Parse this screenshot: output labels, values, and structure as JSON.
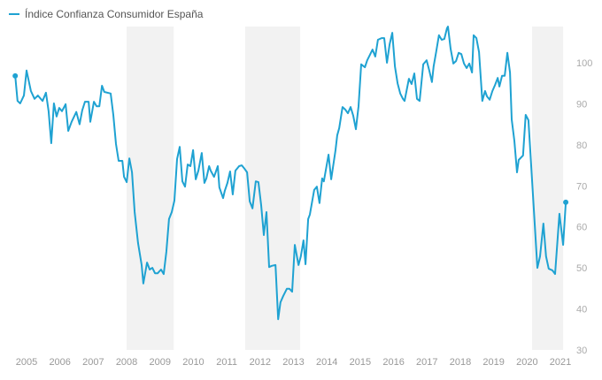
{
  "chart_data": {
    "type": "line",
    "title": "",
    "xlabel": "",
    "ylabel": "",
    "legend": {
      "placement": "top-left",
      "entries": [
        "Índice Confianza Consumidor España"
      ]
    },
    "ylim": [
      30,
      109
    ],
    "yticks": [
      30,
      40,
      50,
      60,
      70,
      80,
      90,
      100
    ],
    "xticks": [
      "2005",
      "2006",
      "2007",
      "2008",
      "2009",
      "2010",
      "2011",
      "2012",
      "2013",
      "2014",
      "2015",
      "2016",
      "2017",
      "2018",
      "2019",
      "2020",
      "2021"
    ],
    "grid": false,
    "shaded_periods": [
      [
        2008.0,
        2009.41
      ],
      [
        2011.55,
        2013.2
      ],
      [
        2020.15,
        2021.08
      ]
    ],
    "colors": {
      "line": "#1fa2d2",
      "shade": "#f2f2f2",
      "tick": "#aaaaaa"
    },
    "series": [
      {
        "name": "Índice Confianza Consumidor España",
        "points": [
          [
            2004.66,
            96.8
          ],
          [
            2004.73,
            90.7
          ],
          [
            2004.81,
            90.1
          ],
          [
            2004.92,
            92
          ],
          [
            2005.0,
            98.1
          ],
          [
            2005.13,
            93.1
          ],
          [
            2005.24,
            91.2
          ],
          [
            2005.34,
            92
          ],
          [
            2005.48,
            90.7
          ],
          [
            2005.58,
            92.7
          ],
          [
            2005.66,
            88.2
          ],
          [
            2005.74,
            80.4
          ],
          [
            2005.82,
            90.1
          ],
          [
            2005.9,
            86.9
          ],
          [
            2005.98,
            89
          ],
          [
            2006.06,
            88.2
          ],
          [
            2006.17,
            89.9
          ],
          [
            2006.25,
            83.4
          ],
          [
            2006.35,
            85.6
          ],
          [
            2006.49,
            88
          ],
          [
            2006.59,
            85
          ],
          [
            2006.67,
            88.4
          ],
          [
            2006.75,
            90.5
          ],
          [
            2006.86,
            90.5
          ],
          [
            2006.91,
            85.6
          ],
          [
            2007.02,
            90.5
          ],
          [
            2007.1,
            89.4
          ],
          [
            2007.18,
            89.4
          ],
          [
            2007.26,
            94.4
          ],
          [
            2007.33,
            92.9
          ],
          [
            2007.52,
            92.5
          ],
          [
            2007.6,
            87.3
          ],
          [
            2007.68,
            80.2
          ],
          [
            2007.76,
            76.1
          ],
          [
            2007.87,
            76.1
          ],
          [
            2007.92,
            72.2
          ],
          [
            2008.0,
            70.9
          ],
          [
            2008.08,
            76.7
          ],
          [
            2008.16,
            73.3
          ],
          [
            2008.24,
            63.6
          ],
          [
            2008.34,
            56.1
          ],
          [
            2008.45,
            50.7
          ],
          [
            2008.5,
            46.2
          ],
          [
            2008.61,
            51.3
          ],
          [
            2008.69,
            49.6
          ],
          [
            2008.77,
            50
          ],
          [
            2008.85,
            48.7
          ],
          [
            2008.93,
            48.7
          ],
          [
            2009.03,
            49.6
          ],
          [
            2009.11,
            48.5
          ],
          [
            2009.19,
            53.9
          ],
          [
            2009.27,
            61.9
          ],
          [
            2009.35,
            63.6
          ],
          [
            2009.43,
            66.4
          ],
          [
            2009.51,
            76.5
          ],
          [
            2009.59,
            79.5
          ],
          [
            2009.67,
            71.1
          ],
          [
            2009.75,
            69.8
          ],
          [
            2009.83,
            75.2
          ],
          [
            2009.91,
            74.8
          ],
          [
            2009.99,
            78.7
          ],
          [
            2010.07,
            71.6
          ],
          [
            2010.15,
            73.7
          ],
          [
            2010.25,
            78
          ],
          [
            2010.33,
            70.7
          ],
          [
            2010.39,
            71.8
          ],
          [
            2010.47,
            74.8
          ],
          [
            2010.52,
            73.7
          ],
          [
            2010.62,
            72.2
          ],
          [
            2010.73,
            74.8
          ],
          [
            2010.78,
            69.6
          ],
          [
            2010.89,
            67
          ],
          [
            2010.94,
            68.8
          ],
          [
            2011.02,
            70.7
          ],
          [
            2011.1,
            73.5
          ],
          [
            2011.18,
            67.9
          ],
          [
            2011.26,
            73.7
          ],
          [
            2011.37,
            74.8
          ],
          [
            2011.45,
            75
          ],
          [
            2011.53,
            74.2
          ],
          [
            2011.61,
            73.3
          ],
          [
            2011.69,
            66.2
          ],
          [
            2011.77,
            64.5
          ],
          [
            2011.87,
            71.1
          ],
          [
            2011.95,
            70.9
          ],
          [
            2012.03,
            65.3
          ],
          [
            2012.11,
            58
          ],
          [
            2012.19,
            63.6
          ],
          [
            2012.27,
            50.2
          ],
          [
            2012.35,
            50.5
          ],
          [
            2012.46,
            50.7
          ],
          [
            2012.54,
            37.5
          ],
          [
            2012.61,
            41.6
          ],
          [
            2012.69,
            43.1
          ],
          [
            2012.8,
            44.9
          ],
          [
            2012.88,
            44.9
          ],
          [
            2012.96,
            44.2
          ],
          [
            2013.04,
            55.6
          ],
          [
            2013.15,
            50.7
          ],
          [
            2013.22,
            52.8
          ],
          [
            2013.3,
            56.7
          ],
          [
            2013.36,
            50.9
          ],
          [
            2013.44,
            61.9
          ],
          [
            2013.49,
            63
          ],
          [
            2013.62,
            69
          ],
          [
            2013.7,
            69.8
          ],
          [
            2013.78,
            65.8
          ],
          [
            2013.86,
            71.8
          ],
          [
            2013.91,
            71.1
          ],
          [
            2014.05,
            77.6
          ],
          [
            2014.13,
            71.6
          ],
          [
            2014.26,
            78.7
          ],
          [
            2014.31,
            82.3
          ],
          [
            2014.37,
            84.1
          ],
          [
            2014.47,
            89.2
          ],
          [
            2014.55,
            88.6
          ],
          [
            2014.63,
            87.7
          ],
          [
            2014.71,
            89.2
          ],
          [
            2014.79,
            87.1
          ],
          [
            2014.87,
            83.8
          ],
          [
            2014.95,
            89.4
          ],
          [
            2015.03,
            99.6
          ],
          [
            2015.14,
            98.9
          ],
          [
            2015.21,
            100.6
          ],
          [
            2015.29,
            101.9
          ],
          [
            2015.37,
            103.2
          ],
          [
            2015.45,
            101.5
          ],
          [
            2015.53,
            105.6
          ],
          [
            2015.64,
            106
          ],
          [
            2015.72,
            106
          ],
          [
            2015.8,
            100
          ],
          [
            2015.88,
            104.5
          ],
          [
            2015.96,
            107.3
          ],
          [
            2016.04,
            99.1
          ],
          [
            2016.12,
            95
          ],
          [
            2016.2,
            92.5
          ],
          [
            2016.28,
            91.2
          ],
          [
            2016.33,
            90.7
          ],
          [
            2016.46,
            96.1
          ],
          [
            2016.54,
            94.8
          ],
          [
            2016.62,
            97.4
          ],
          [
            2016.7,
            91.2
          ],
          [
            2016.78,
            90.7
          ],
          [
            2016.89,
            99.6
          ],
          [
            2016.99,
            100.6
          ],
          [
            2017.07,
            98.1
          ],
          [
            2017.15,
            95.3
          ],
          [
            2017.2,
            99.1
          ],
          [
            2017.28,
            102.8
          ],
          [
            2017.36,
            106.7
          ],
          [
            2017.44,
            105.6
          ],
          [
            2017.52,
            105.8
          ],
          [
            2017.6,
            108.4
          ],
          [
            2017.63,
            108.8
          ],
          [
            2017.71,
            103.4
          ],
          [
            2017.79,
            99.8
          ],
          [
            2017.87,
            100.4
          ],
          [
            2017.95,
            102.4
          ],
          [
            2018.03,
            102.1
          ],
          [
            2018.11,
            99.8
          ],
          [
            2018.19,
            98.7
          ],
          [
            2018.27,
            99.8
          ],
          [
            2018.35,
            97.6
          ],
          [
            2018.4,
            106.7
          ],
          [
            2018.48,
            106
          ],
          [
            2018.56,
            102.6
          ],
          [
            2018.66,
            90.7
          ],
          [
            2018.74,
            93.1
          ],
          [
            2018.8,
            91.8
          ],
          [
            2018.88,
            91
          ],
          [
            2018.96,
            93.1
          ],
          [
            2019.04,
            94.6
          ],
          [
            2019.12,
            96.3
          ],
          [
            2019.17,
            94.2
          ],
          [
            2019.25,
            96.8
          ],
          [
            2019.33,
            96.8
          ],
          [
            2019.41,
            102.4
          ],
          [
            2019.49,
            97.6
          ],
          [
            2019.54,
            86.2
          ],
          [
            2019.62,
            81
          ],
          [
            2019.7,
            73.3
          ],
          [
            2019.75,
            76.3
          ],
          [
            2019.88,
            77.4
          ],
          [
            2019.96,
            87.3
          ],
          [
            2020.04,
            86
          ],
          [
            2020.31,
            50
          ],
          [
            2020.39,
            52.8
          ],
          [
            2020.49,
            60.8
          ],
          [
            2020.57,
            52.8
          ],
          [
            2020.65,
            49.8
          ],
          [
            2020.76,
            49.4
          ],
          [
            2020.84,
            48.5
          ],
          [
            2020.97,
            63.2
          ],
          [
            2021.08,
            55.6
          ],
          [
            2021.16,
            66
          ]
        ]
      }
    ]
  }
}
